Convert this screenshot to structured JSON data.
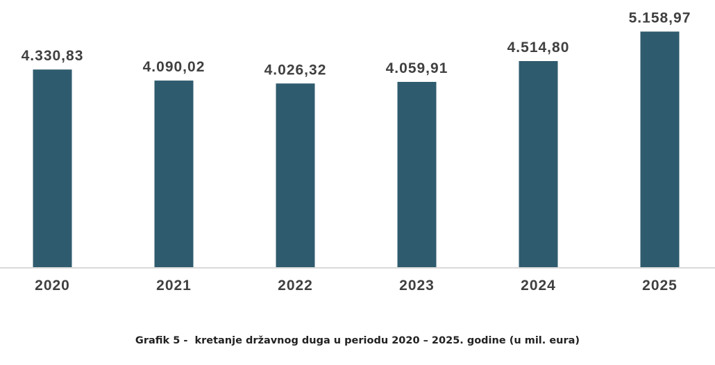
{
  "chart_data": {
    "type": "bar",
    "categories": [
      "2020",
      "2021",
      "2022",
      "2023",
      "2024",
      "2025"
    ],
    "values": [
      4330.83,
      4090.02,
      4026.32,
      4059.91,
      4514.8,
      5158.97
    ],
    "data_labels": [
      "4.330,83",
      "4.090,02",
      "4.026,32",
      "4.059,91",
      "4.514,80",
      "5.158,97"
    ],
    "ylim": [
      0,
      5500
    ],
    "grid": false,
    "legend": "none",
    "bar_color": "#2f5b6e",
    "axis_color": "#d9d9d9"
  },
  "caption": "Grafik 5 -  kretanje državnog duga u periodu 2020 – 2025. godine (u mil. eura)"
}
